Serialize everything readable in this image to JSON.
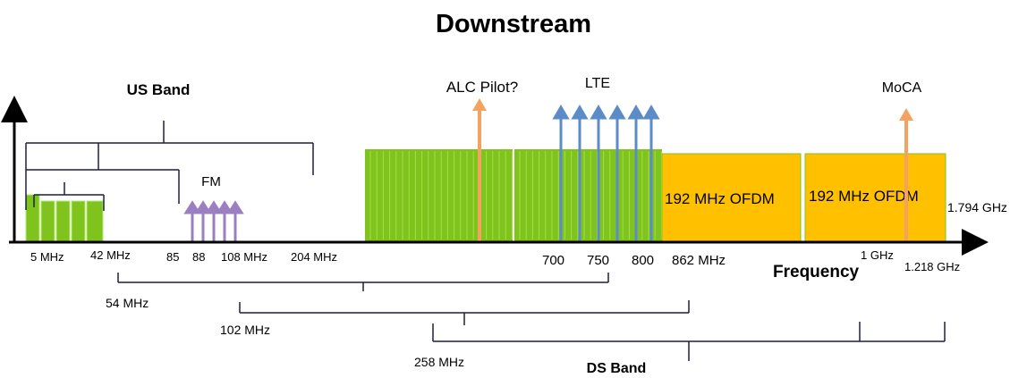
{
  "title": "Downstream",
  "colors": {
    "green": "#7fc41c",
    "green_light": "#a6dc4a",
    "orange_block": "#ffc000",
    "orange_arrow": "#f4a261",
    "lte_arrow": "#5b8cc8",
    "fm_arrow": "#9b7fc0",
    "line": "#1f1f3a"
  },
  "labels": {
    "us_band": "US Band",
    "fm": "FM",
    "alc_pilot": "ALC Pilot?",
    "lte": "LTE",
    "moca": "MoCA",
    "ofdm_1": "192 MHz OFDM",
    "ofdm_2": "192 MHz OFDM",
    "right_edge": "1.794 GHz",
    "frequency": "Frequency",
    "ds_band": "DS Band"
  },
  "axis_ticks": {
    "t5": "5 MHz",
    "t42": "42 MHz",
    "t85": "85",
    "t88": "88",
    "t108": "108 MHz",
    "t204": "204 MHz",
    "t700": "700",
    "t750": "750",
    "t800": "800",
    "t862": "862 MHz",
    "t1g": "1 GHz",
    "t1218": "1.218 GHz"
  },
  "ds_splits": {
    "s54": "54 MHz",
    "s102": "102 MHz",
    "s258": "258 MHz"
  }
}
